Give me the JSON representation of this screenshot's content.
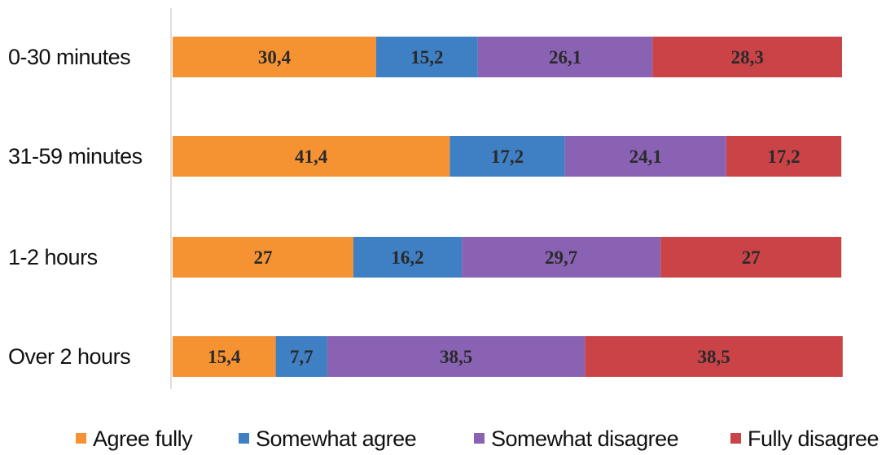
{
  "chart_data": {
    "type": "bar",
    "orientation": "horizontal",
    "stacked": true,
    "title": "",
    "xlabel": "",
    "ylabel": "",
    "xlim": [
      0,
      100
    ],
    "grid": false,
    "legend_position": "bottom",
    "categories": [
      "0-30 minutes",
      "31-59 minutes",
      "1-2 hours",
      "Over 2 hours"
    ],
    "series": [
      {
        "name": "Agree fully",
        "color": "#f59332",
        "values": [
          30.4,
          41.4,
          27,
          15.4
        ],
        "labels": [
          "30,4",
          "41,4",
          "27",
          "15,4"
        ]
      },
      {
        "name": "Somewhat agree",
        "color": "#3f7fc3",
        "values": [
          15.2,
          17.2,
          16.2,
          7.7
        ],
        "labels": [
          "15,2",
          "17,2",
          "16,2",
          "7,7"
        ]
      },
      {
        "name": "Somewhat disagree",
        "color": "#8a62b4",
        "values": [
          26.1,
          24.1,
          29.7,
          38.5
        ],
        "labels": [
          "26,1",
          "24,1",
          "29,7",
          "38,5"
        ]
      },
      {
        "name": "Fully disagree",
        "color": "#c94347",
        "values": [
          28.3,
          17.2,
          27,
          38.5
        ],
        "labels": [
          "28,3",
          "17,2",
          "27",
          "38,5"
        ]
      }
    ]
  }
}
